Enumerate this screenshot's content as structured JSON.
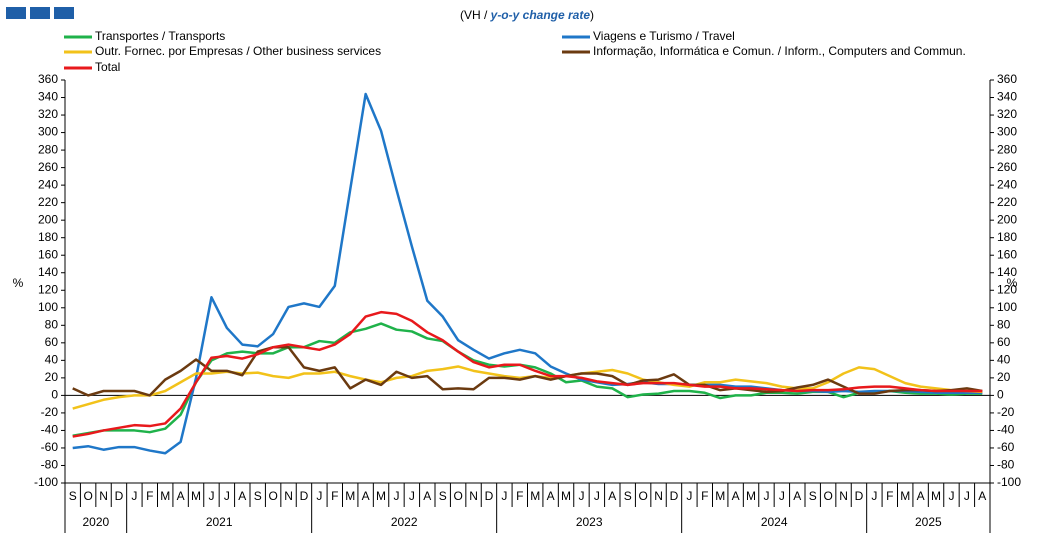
{
  "chart_data": {
    "type": "line",
    "subtitle": [
      "(VH / ",
      "y-o-y change rate",
      ")"
    ],
    "ylabel": "%",
    "y2label": "%",
    "categories": [
      "S",
      "O",
      "N",
      "D",
      "J",
      "F",
      "M",
      "A",
      "M",
      "J",
      "J",
      "A",
      "S",
      "O",
      "N",
      "D",
      "J",
      "F",
      "M",
      "A",
      "M",
      "J",
      "J",
      "A",
      "S",
      "O",
      "N",
      "D",
      "J",
      "F",
      "M",
      "A",
      "M",
      "J",
      "J",
      "A",
      "S",
      "O",
      "N",
      "D",
      "J",
      "F",
      "M",
      "A",
      "M",
      "J",
      "J",
      "A",
      "S",
      "O",
      "N",
      "D",
      "J",
      "F",
      "M",
      "A",
      "M",
      "J",
      "J",
      "A"
    ],
    "years": [
      "2020",
      "2021",
      "2022",
      "2023",
      "2024",
      "2025"
    ],
    "ylim": [
      -100,
      360
    ],
    "yticks": [
      -100,
      -80,
      -60,
      -40,
      -20,
      0,
      20,
      40,
      60,
      80,
      100,
      120,
      140,
      160,
      180,
      200,
      220,
      240,
      260,
      280,
      300,
      320,
      340,
      360
    ],
    "y2lim": [
      -100,
      360
    ],
    "y2ticks": [
      -100,
      -80,
      -60,
      -40,
      -20,
      0,
      20,
      40,
      60,
      80,
      100,
      120,
      140,
      160,
      180,
      200,
      220,
      240,
      260,
      280,
      300,
      320,
      340,
      360
    ],
    "series": [
      {
        "name": "Transportes / Transports",
        "color": "#1fb24a",
        "values": [
          -46,
          -43,
          -40,
          -40,
          -40,
          -42,
          -38,
          -22,
          15,
          40,
          48,
          50,
          48,
          48,
          55,
          55,
          62,
          60,
          72,
          76,
          82,
          75,
          73,
          65,
          62,
          50,
          40,
          35,
          33,
          35,
          32,
          25,
          15,
          17,
          10,
          8,
          -2,
          1,
          2,
          5,
          5,
          3,
          -3,
          0,
          0,
          3,
          3,
          2,
          4,
          4,
          -2,
          3,
          3,
          5,
          3,
          2,
          2,
          1,
          2,
          2
        ]
      },
      {
        "name": "Viagens e Turismo / Travel",
        "color": "#1f77c8",
        "values": [
          -60,
          -58,
          -62,
          -59,
          -59,
          -63,
          -66,
          -53,
          20,
          112,
          77,
          58,
          56,
          70,
          101,
          105,
          101,
          125,
          235,
          344,
          302,
          235,
          170,
          108,
          90,
          63,
          52,
          42,
          48,
          52,
          48,
          33,
          25,
          18,
          15,
          12,
          13,
          15,
          13,
          13,
          12,
          12,
          12,
          10,
          10,
          8,
          6,
          5,
          5,
          4,
          5,
          4,
          5,
          5,
          5,
          4,
          3,
          3,
          3,
          3
        ]
      },
      {
        "name": "Outr. Fornec. por Empresas / Other business services",
        "color": "#f2c21a",
        "values": [
          -15,
          -10,
          -5,
          -2,
          0,
          0,
          5,
          15,
          25,
          25,
          27,
          25,
          26,
          22,
          20,
          25,
          25,
          27,
          22,
          18,
          15,
          20,
          22,
          28,
          30,
          33,
          28,
          25,
          22,
          20,
          22,
          20,
          22,
          25,
          27,
          29,
          25,
          18,
          15,
          12,
          10,
          15,
          15,
          18,
          16,
          14,
          10,
          8,
          8,
          15,
          25,
          32,
          30,
          22,
          14,
          10,
          8,
          6,
          5,
          4
        ]
      },
      {
        "name": "Informação, Informática e Comun. / Inform., Computers and Commun.",
        "color": "#6b3a10",
        "values": [
          8,
          0,
          5,
          5,
          5,
          0,
          18,
          28,
          41,
          28,
          28,
          23,
          50,
          55,
          55,
          32,
          28,
          32,
          8,
          18,
          12,
          27,
          20,
          22,
          7,
          8,
          7,
          20,
          20,
          18,
          22,
          18,
          22,
          25,
          25,
          22,
          12,
          17,
          18,
          24,
          12,
          12,
          6,
          8,
          6,
          4,
          5,
          9,
          12,
          18,
          10,
          2,
          2,
          5,
          6,
          6,
          5,
          6,
          8,
          5
        ]
      },
      {
        "name": "Total",
        "color": "#e8191c",
        "values": [
          -47,
          -44,
          -40,
          -37,
          -34,
          -35,
          -32,
          -15,
          15,
          43,
          45,
          42,
          47,
          55,
          58,
          55,
          52,
          58,
          70,
          90,
          95,
          93,
          85,
          72,
          63,
          50,
          38,
          32,
          35,
          35,
          28,
          22,
          22,
          20,
          16,
          14,
          12,
          14,
          14,
          14,
          12,
          10,
          10,
          8,
          8,
          7,
          6,
          5,
          6,
          6,
          7,
          9,
          10,
          10,
          8,
          6,
          5,
          5,
          5,
          5
        ]
      }
    ]
  }
}
